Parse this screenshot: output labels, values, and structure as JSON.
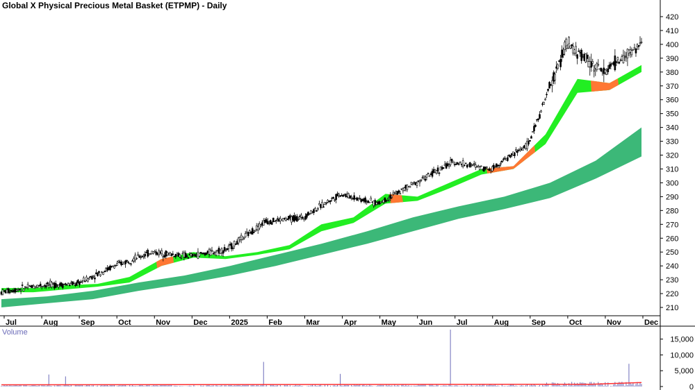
{
  "title": "Global X Physical Precious Metal Basket (ETPMP) - Daily",
  "volume_label": "Volume",
  "colors": {
    "price_candle": "#000000",
    "ribbon_short_up": "#22ee22",
    "ribbon_short_down": "#ff7733",
    "ribbon_long": "#3cb878",
    "volume_bars": "#6b6bb8",
    "volume_avg": "#ff3030",
    "axis": "#000000"
  },
  "chart_data": [
    {
      "type": "candlestick",
      "x_tick_labels": [
        "Jul",
        "Aug",
        "Sep",
        "Oct",
        "Nov",
        "Dec",
        "2025",
        "Feb",
        "Mar",
        "Apr",
        "May",
        "Jun",
        "Jul",
        "Aug",
        "Sep",
        "Oct",
        "Nov",
        "Dec"
      ],
      "y_tick_labels": [
        "210",
        "220",
        "230",
        "240",
        "250",
        "260",
        "270",
        "280",
        "290",
        "300",
        "310",
        "320",
        "330",
        "340",
        "350",
        "360",
        "370",
        "380",
        "390",
        "400",
        "410",
        "420"
      ],
      "ylim": [
        204,
        425
      ],
      "ylabel": "",
      "xlabel": "",
      "series": [
        {
          "monthly_close_estimate": [
            221,
            226,
            227,
            240,
            250,
            247,
            252,
            272,
            275,
            292,
            285,
            300,
            315,
            310,
            328,
            400,
            380,
            400
          ]
        }
      ],
      "ribbons": [
        {
          "upper": [
            224,
            224,
            226,
            227,
            232,
            245,
            250,
            247,
            250,
            255,
            270,
            275,
            292,
            290,
            300,
            310,
            312,
            335,
            375,
            372,
            385
          ],
          "lower": [
            221,
            221,
            223,
            225,
            228,
            240,
            246,
            245,
            248,
            252,
            265,
            271,
            285,
            287,
            296,
            306,
            310,
            328,
            365,
            367,
            380
          ]
        },
        {
          "upper": [
            216,
            218,
            222,
            228,
            233,
            240,
            248,
            256,
            265,
            275,
            283,
            290,
            300,
            316,
            340
          ],
          "lower": [
            210,
            213,
            216,
            222,
            227,
            233,
            240,
            248,
            256,
            265,
            274,
            281,
            289,
            303,
            319
          ]
        }
      ]
    },
    {
      "type": "bar",
      "ylabel": "Volume",
      "y_tick_labels": [
        "0",
        "5,000",
        "10,000",
        "15,000"
      ],
      "ylim": [
        0,
        18000
      ],
      "spikes": [
        3800,
        3200,
        7800,
        4000,
        18000,
        7200
      ],
      "average_level": 900
    }
  ]
}
